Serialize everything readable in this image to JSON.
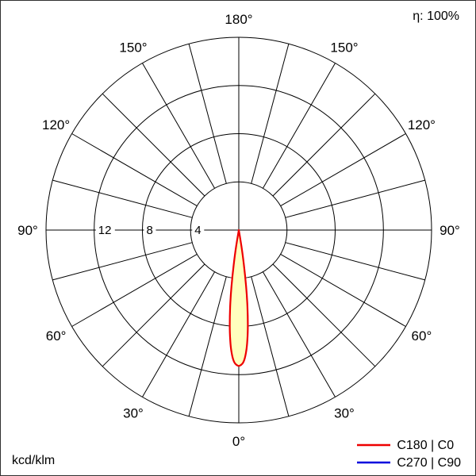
{
  "header": {
    "eta": "η: 100%"
  },
  "footer": {
    "unit": "kcd/klm"
  },
  "legend": {
    "items": [
      {
        "label": "C180 | C0",
        "color": "#ee0000"
      },
      {
        "label": "C270 | C90",
        "color": "#0000dd"
      }
    ]
  },
  "chart_data": {
    "type": "polar",
    "subtype": "luminous-intensity-distribution",
    "unit_label": "kcd/klm",
    "efficiency_label": "η: 100%",
    "angle_zero_position": "bottom",
    "grid_angle_step_deg": 15,
    "angle_label_step_deg": 30,
    "angle_labels": [
      "0°",
      "30°",
      "60°",
      "90°",
      "120°",
      "150°",
      "180°"
    ],
    "angle_label_values": [
      0,
      30,
      60,
      90,
      120,
      150,
      180
    ],
    "ring_values": [
      4,
      8,
      12,
      16
    ],
    "ring_labels": [
      "12",
      "8",
      "4"
    ],
    "ring_label_values": [
      12,
      8,
      4
    ],
    "radial_max": 16,
    "grid_color": "#000000",
    "series": [
      {
        "name": "C180 | C0",
        "color": "#ee0000",
        "fill": "#ffffbe",
        "symmetric": true,
        "gamma_deg": [
          0,
          1,
          2,
          3,
          4,
          5,
          6,
          7,
          8,
          9,
          10,
          11
        ],
        "intensity_kcd_klm": [
          11.3,
          11.2,
          11.0,
          10.5,
          9.7,
          8.6,
          7.2,
          5.6,
          3.8,
          2.0,
          0.7,
          0
        ]
      },
      {
        "name": "C270 | C90",
        "color": "#0000dd"
      }
    ]
  }
}
